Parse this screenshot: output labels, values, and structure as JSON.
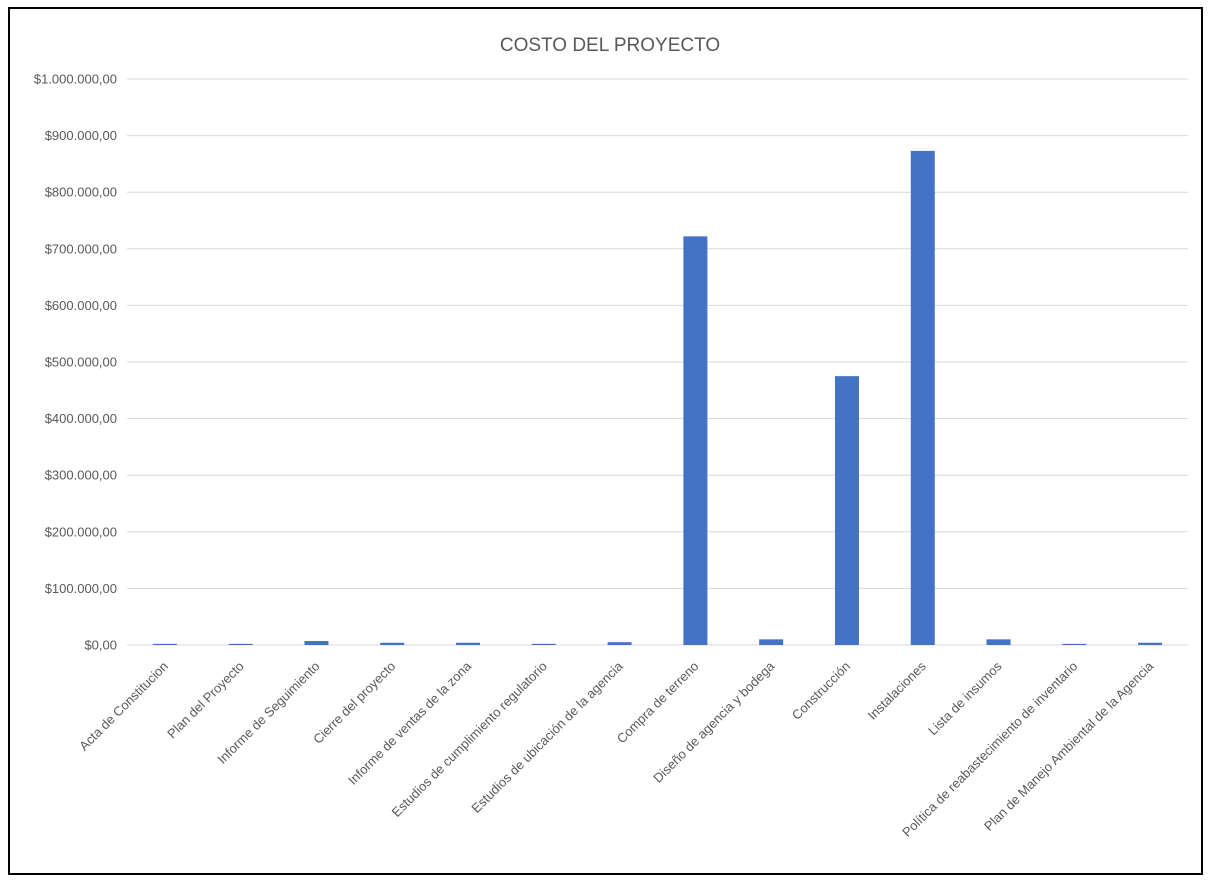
{
  "chart_data": {
    "type": "bar",
    "title": "COSTO DEL PROYECTO",
    "xlabel": "",
    "ylabel": "",
    "ylim": [
      0,
      1000000
    ],
    "ytick_values": [
      0,
      100000,
      200000,
      300000,
      400000,
      500000,
      600000,
      700000,
      800000,
      900000,
      1000000
    ],
    "ytick_labels": [
      "$0,00",
      "$100.000,00",
      "$200.000,00",
      "$300.000,00",
      "$400.000,00",
      "$500.000,00",
      "$600.000,00",
      "$700.000,00",
      "$800.000,00",
      "$900.000,00",
      "$1.000.000,00"
    ],
    "grid": true,
    "legend": "none",
    "bar_color": "#4472c4",
    "categories": [
      "Acta de Constitucion",
      "Plan del Proyecto",
      "Informe de Seguimiento",
      "Cierre del proyecto",
      "Informe de ventas de la zona",
      "Estudios de cumplimiento regulatorio",
      "Estudios de ubicación de la agencia",
      "Compra de terreno",
      "Diseño de agencia y bodega",
      "Construcción",
      "Instalaciones",
      "Lista de insumos",
      "Política de reabastecimiento de inventario",
      "Plan de Manejo Ambiental de la Agencia"
    ],
    "values": [
      2000,
      2000,
      7000,
      4000,
      4000,
      2000,
      5000,
      722000,
      10000,
      475000,
      873000,
      10000,
      2000,
      4000
    ]
  }
}
